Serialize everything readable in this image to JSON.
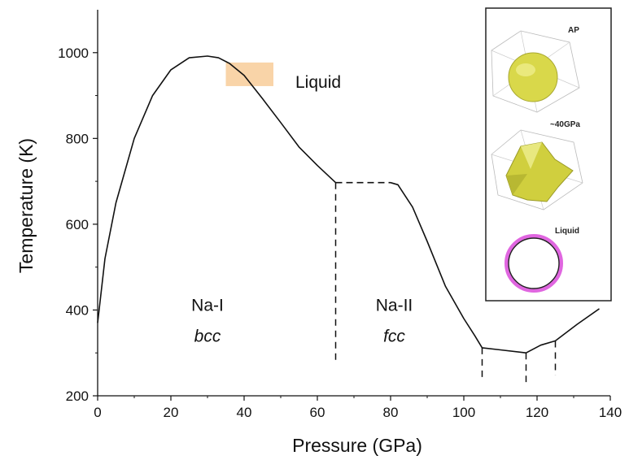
{
  "chart_data": {
    "type": "line",
    "xlabel": "Pressure (GPa)",
    "ylabel": "Temperature (K)",
    "xlim": [
      0,
      140
    ],
    "ylim": [
      200,
      1100
    ],
    "xticks": [
      0,
      20,
      40,
      60,
      80,
      100,
      120,
      140
    ],
    "yticks": [
      200,
      400,
      600,
      800,
      1000
    ],
    "grid": false,
    "series": [
      {
        "style": "solid",
        "x": [
          0,
          2,
          5,
          10,
          15,
          20,
          25,
          30,
          33,
          36,
          40,
          45,
          50,
          55,
          60,
          65
        ],
        "y": [
          370,
          520,
          650,
          800,
          900,
          960,
          988,
          992,
          988,
          975,
          947,
          893,
          837,
          780,
          737,
          697
        ]
      },
      {
        "style": "dashed",
        "x": [
          65,
          80
        ],
        "y": [
          697,
          697
        ]
      },
      {
        "style": "solid",
        "x": [
          80,
          82,
          86,
          90,
          95,
          100,
          103,
          105,
          110,
          117,
          121,
          125,
          131,
          137
        ],
        "y": [
          697,
          692,
          640,
          560,
          455,
          380,
          340,
          312,
          307,
          300,
          318,
          328,
          367,
          403
        ]
      }
    ],
    "phase_boundaries": [
      {
        "x": 65,
        "y_from": 697,
        "y_to": 275,
        "style": "dashed"
      },
      {
        "x": 105,
        "y_from": 312,
        "y_to": 240,
        "style": "dashed"
      },
      {
        "x": 117,
        "y_from": 300,
        "y_to": 232,
        "style": "dashed"
      },
      {
        "x": 125,
        "y_from": 328,
        "y_to": 248,
        "style": "dashed"
      }
    ],
    "shaded_region": {
      "x_from": 35,
      "x_to": 48,
      "y_from": 922,
      "y_to": 977,
      "color": "#f9d4a8"
    },
    "annotations": [
      {
        "text": "Liquid",
        "x": 54,
        "y": 918,
        "style": "normal"
      },
      {
        "text": "Na-I",
        "x": 30,
        "y": 398,
        "style": "normal"
      },
      {
        "text": "bcc",
        "x": 30,
        "y": 326,
        "style": "italic"
      },
      {
        "text": "Na-II",
        "x": 81,
        "y": 398,
        "style": "normal"
      },
      {
        "text": "fcc",
        "x": 81,
        "y": 326,
        "style": "italic"
      }
    ],
    "inset": {
      "labels": [
        "AP",
        "~40GPa",
        "Liquid"
      ],
      "colors": {
        "shape": "#d9d84a",
        "ring": "#e066e0",
        "border": "#222222"
      }
    }
  }
}
